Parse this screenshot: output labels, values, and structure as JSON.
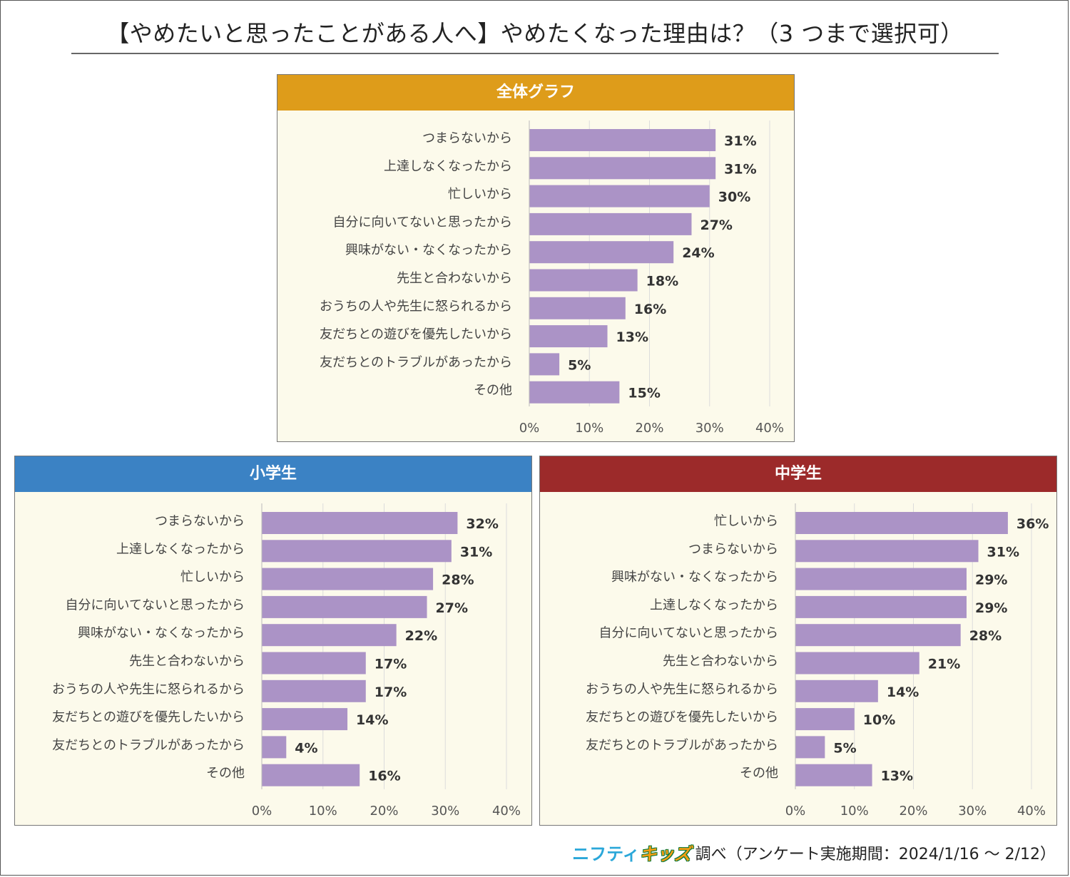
{
  "title": "【やめたいと思ったことがある人へ】やめたくなった理由は？（3 つまで選択可）",
  "footer": {
    "logo_part1": "ニフティ",
    "logo_part2": "キッズ",
    "text": "調べ（アンケート実施期間：2024/1/16 ～ 2/12）"
  },
  "colors": {
    "bar": "#ab93c6",
    "header_overall": "#de9c1a",
    "header_elementary": "#3b82c4",
    "header_junior": "#9c2a2a",
    "panel_bg": "#fcfaeb",
    "grid": "#dcdcdc"
  },
  "chart_data": [
    {
      "type": "bar",
      "orientation": "horizontal",
      "title": "全体グラフ",
      "categories": [
        "つまらないから",
        "上達しなくなったから",
        "忙しいから",
        "自分に向いてないと思ったから",
        "興味がない・なくなったから",
        "先生と合わないから",
        "おうちの人や先生に怒られるから",
        "友だちとの遊びを優先したいから",
        "友だちとのトラブルがあったから",
        "その他"
      ],
      "values": [
        31,
        31,
        30,
        27,
        24,
        18,
        16,
        13,
        5,
        15
      ],
      "value_labels": [
        "31%",
        "31%",
        "30%",
        "27%",
        "24%",
        "18%",
        "16%",
        "13%",
        "5%",
        "15%"
      ],
      "ticks": [
        "0%",
        "10%",
        "20%",
        "30%",
        "40%"
      ],
      "xlim": [
        0,
        40
      ]
    },
    {
      "type": "bar",
      "orientation": "horizontal",
      "title": "小学生",
      "categories": [
        "つまらないから",
        "上達しなくなったから",
        "忙しいから",
        "自分に向いてないと思ったから",
        "興味がない・なくなったから",
        "先生と合わないから",
        "おうちの人や先生に怒られるから",
        "友だちとの遊びを優先したいから",
        "友だちとのトラブルがあったから",
        "その他"
      ],
      "values": [
        32,
        31,
        28,
        27,
        22,
        17,
        17,
        14,
        4,
        16
      ],
      "value_labels": [
        "32%",
        "31%",
        "28%",
        "27%",
        "22%",
        "17%",
        "17%",
        "14%",
        "4%",
        "16%"
      ],
      "ticks": [
        "0%",
        "10%",
        "20%",
        "30%",
        "40%"
      ],
      "xlim": [
        0,
        40
      ]
    },
    {
      "type": "bar",
      "orientation": "horizontal",
      "title": "中学生",
      "categories": [
        "忙しいから",
        "つまらないから",
        "興味がない・なくなったから",
        "上達しなくなったから",
        "自分に向いてないと思ったから",
        "先生と合わないから",
        "おうちの人や先生に怒られるから",
        "友だちとの遊びを優先したいから",
        "友だちとのトラブルがあったから",
        "その他"
      ],
      "values": [
        36,
        31,
        29,
        29,
        28,
        21,
        14,
        10,
        5,
        13
      ],
      "value_labels": [
        "36%",
        "31%",
        "29%",
        "29%",
        "28%",
        "21%",
        "14%",
        "10%",
        "5%",
        "13%"
      ],
      "ticks": [
        "0%",
        "10%",
        "20%",
        "30%",
        "40%"
      ],
      "xlim": [
        0,
        40
      ]
    }
  ]
}
